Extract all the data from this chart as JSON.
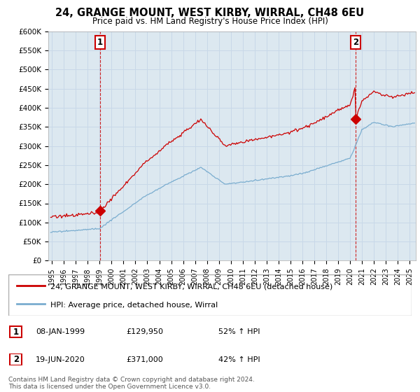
{
  "title": "24, GRANGE MOUNT, WEST KIRBY, WIRRAL, CH48 6EU",
  "subtitle": "Price paid vs. HM Land Registry's House Price Index (HPI)",
  "legend_line1": "24, GRANGE MOUNT, WEST KIRBY, WIRRAL, CH48 6EU (detached house)",
  "legend_line2": "HPI: Average price, detached house, Wirral",
  "purchase1_date": "08-JAN-1999",
  "purchase1_price": 129950,
  "purchase1_pct": "52% ↑ HPI",
  "purchase1_x": 1999.04,
  "purchase2_date": "19-JUN-2020",
  "purchase2_price": 371000,
  "purchase2_pct": "42% ↑ HPI",
  "purchase2_x": 2020.46,
  "red_color": "#cc0000",
  "blue_color": "#7aadcf",
  "vline_color": "#cc0000",
  "grid_color": "#c8d8e8",
  "bg_color": "#dce8f0",
  "box_color": "#cc0000",
  "ylim": [
    0,
    600000
  ],
  "xlim": [
    1994.7,
    2025.5
  ],
  "footer": "Contains HM Land Registry data © Crown copyright and database right 2024.\nThis data is licensed under the Open Government Licence v3.0.",
  "yticks": [
    0,
    50000,
    100000,
    150000,
    200000,
    250000,
    300000,
    350000,
    400000,
    450000,
    500000,
    550000,
    600000
  ],
  "ytick_labels": [
    "£0",
    "£50K",
    "£100K",
    "£150K",
    "£200K",
    "£250K",
    "£300K",
    "£350K",
    "£400K",
    "£450K",
    "£500K",
    "£550K",
    "£600K"
  ]
}
